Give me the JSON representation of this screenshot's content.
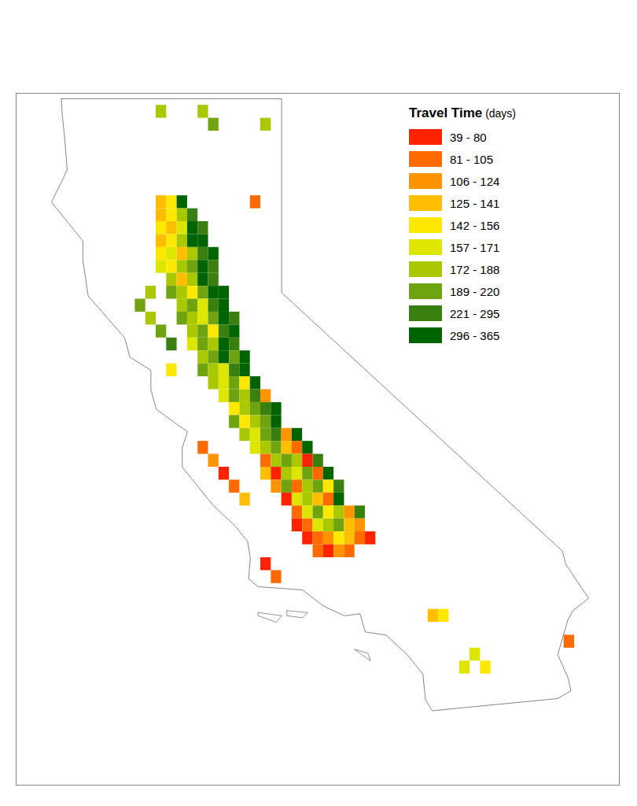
{
  "chart_data": {
    "type": "choropleth",
    "legend_title": "Travel Time",
    "legend_unit": "(days)",
    "legend": "top-right",
    "tick_labels": false,
    "classes": [
      {
        "label": "39 - 80",
        "min": 39,
        "max": 80,
        "color": "#ff2200"
      },
      {
        "label": "81 - 105",
        "min": 81,
        "max": 105,
        "color": "#ff6a00"
      },
      {
        "label": "106 - 124",
        "min": 106,
        "max": 124,
        "color": "#ff9400"
      },
      {
        "label": "125 - 141",
        "min": 125,
        "max": 141,
        "color": "#ffbf00"
      },
      {
        "label": "142 - 156",
        "min": 142,
        "max": 156,
        "color": "#ffe800"
      },
      {
        "label": "157 - 171",
        "min": 157,
        "max": 171,
        "color": "#dce600"
      },
      {
        "label": "172 - 188",
        "min": 172,
        "max": 188,
        "color": "#aac800"
      },
      {
        "label": "189 - 220",
        "min": 189,
        "max": 220,
        "color": "#6fa310"
      },
      {
        "label": "221 - 295",
        "min": 221,
        "max": 295,
        "color": "#3a8010"
      },
      {
        "label": "296 - 365",
        "min": 296,
        "max": 365,
        "color": "#006400"
      }
    ],
    "cell_size": 0.2,
    "cell_rows": [
      {
        "lat": 40.4,
        "lon": -122.4,
        "classes": [
          3,
          4,
          9
        ]
      },
      {
        "lat": 40.2,
        "lon": -122.4,
        "classes": [
          3,
          4,
          6,
          8
        ]
      },
      {
        "lat": 40.0,
        "lon": -122.4,
        "classes": [
          4,
          3,
          5,
          9,
          8
        ]
      },
      {
        "lat": 39.8,
        "lon": -122.4,
        "classes": [
          3,
          4,
          6,
          9,
          9
        ]
      },
      {
        "lat": 39.6,
        "lon": -122.4,
        "classes": [
          4,
          5,
          3,
          6,
          8,
          9
        ]
      },
      {
        "lat": 39.4,
        "lon": -122.4,
        "classes": [
          5,
          4,
          6,
          7,
          9,
          8
        ]
      },
      {
        "lat": 39.2,
        "lon": -122.2,
        "classes": [
          6,
          3,
          6,
          9,
          8
        ]
      },
      {
        "lat": 39.0,
        "lon": -122.2,
        "classes": [
          7,
          6,
          4,
          7,
          9,
          9
        ]
      },
      {
        "lat": 38.8,
        "lon": -122.0,
        "classes": [
          6,
          7,
          5,
          8,
          9
        ]
      },
      {
        "lat": 38.6,
        "lon": -122.0,
        "classes": [
          7,
          6,
          5,
          7,
          9,
          8
        ]
      },
      {
        "lat": 38.4,
        "lon": -121.8,
        "classes": [
          6,
          7,
          4,
          8,
          9
        ]
      },
      {
        "lat": 38.2,
        "lon": -121.8,
        "classes": [
          5,
          7,
          6,
          9,
          8
        ]
      },
      {
        "lat": 38.0,
        "lon": -121.6,
        "classes": [
          6,
          7,
          9,
          7,
          9
        ]
      },
      {
        "lat": 37.8,
        "lon": -121.6,
        "classes": [
          7,
          6,
          5,
          8,
          9
        ]
      },
      {
        "lat": 37.6,
        "lon": -121.4,
        "classes": [
          6,
          5,
          7,
          4,
          9
        ]
      },
      {
        "lat": 37.4,
        "lon": -121.2,
        "classes": [
          5,
          7,
          6,
          8,
          2
        ]
      },
      {
        "lat": 37.2,
        "lon": -121.0,
        "classes": [
          4,
          6,
          7,
          8,
          9
        ]
      },
      {
        "lat": 37.0,
        "lon": -121.0,
        "classes": [
          7,
          4,
          6,
          7,
          9
        ]
      },
      {
        "lat": 36.8,
        "lon": -120.8,
        "classes": [
          6,
          5,
          7,
          8,
          2,
          9
        ]
      },
      {
        "lat": 36.6,
        "lon": -120.6,
        "classes": [
          5,
          6,
          7,
          3,
          1,
          9
        ]
      },
      {
        "lat": 36.4,
        "lon": -120.4,
        "classes": [
          1,
          6,
          7,
          6,
          0,
          8
        ]
      },
      {
        "lat": 36.2,
        "lon": -120.4,
        "classes": [
          3,
          0,
          6,
          5,
          7,
          1,
          9
        ]
      },
      {
        "lat": 36.0,
        "lon": -120.2,
        "classes": [
          2,
          7,
          1,
          6,
          7,
          4,
          8
        ]
      },
      {
        "lat": 35.8,
        "lon": -120.0,
        "classes": [
          0,
          5,
          6,
          3,
          1,
          9
        ]
      },
      {
        "lat": 35.6,
        "lon": -119.8,
        "classes": [
          1,
          5,
          7,
          4,
          6,
          2,
          8
        ]
      },
      {
        "lat": 35.4,
        "lon": -119.8,
        "classes": [
          0,
          1,
          5,
          6,
          7,
          3,
          2
        ]
      },
      {
        "lat": 35.2,
        "lon": -119.6,
        "classes": [
          0,
          1,
          2,
          4,
          3,
          1,
          0
        ]
      },
      {
        "lat": 35.0,
        "lon": -119.4,
        "classes": [
          1,
          0,
          2,
          1
        ]
      },
      {
        "lat": 36.6,
        "lon": -121.6,
        "classes": [
          1
        ]
      },
      {
        "lat": 36.4,
        "lon": -121.4,
        "classes": [
          2
        ]
      },
      {
        "lat": 36.2,
        "lon": -121.2,
        "classes": [
          0
        ]
      },
      {
        "lat": 36.0,
        "lon": -121.0,
        "classes": [
          1
        ]
      },
      {
        "lat": 35.8,
        "lon": -120.8,
        "classes": [
          3
        ]
      },
      {
        "lat": 38.6,
        "lon": -122.6,
        "classes": [
          6
        ]
      },
      {
        "lat": 38.4,
        "lon": -122.4,
        "classes": [
          7
        ]
      },
      {
        "lat": 38.2,
        "lon": -122.2,
        "classes": [
          8
        ]
      },
      {
        "lat": 37.8,
        "lon": -122.2,
        "classes": [
          4
        ]
      },
      {
        "lat": 39.0,
        "lon": -122.6,
        "classes": [
          6
        ]
      },
      {
        "lat": 38.8,
        "lon": -122.8,
        "classes": [
          7
        ]
      },
      {
        "lat": 34.8,
        "lon": -120.4,
        "classes": [
          0
        ]
      },
      {
        "lat": 34.6,
        "lon": -120.2,
        "classes": [
          1
        ]
      },
      {
        "lat": 41.8,
        "lon": -122.4,
        "classes": [
          6
        ]
      },
      {
        "lat": 41.8,
        "lon": -121.6,
        "classes": [
          6
        ]
      },
      {
        "lat": 41.6,
        "lon": -121.4,
        "classes": [
          7
        ]
      },
      {
        "lat": 41.6,
        "lon": -120.4,
        "classes": [
          6
        ]
      },
      {
        "lat": 40.4,
        "lon": -120.6,
        "classes": [
          1
        ]
      },
      {
        "lat": 33.4,
        "lon": -116.4,
        "classes": [
          5
        ]
      },
      {
        "lat": 33.2,
        "lon": -116.2,
        "classes": [
          4
        ]
      },
      {
        "lat": 33.2,
        "lon": -116.6,
        "classes": [
          5
        ]
      },
      {
        "lat": 33.6,
        "lon": -114.6,
        "classes": [
          1
        ]
      },
      {
        "lat": 34.0,
        "lon": -117.0,
        "classes": [
          4
        ]
      },
      {
        "lat": 34.0,
        "lon": -117.2,
        "classes": [
          3
        ]
      }
    ]
  }
}
